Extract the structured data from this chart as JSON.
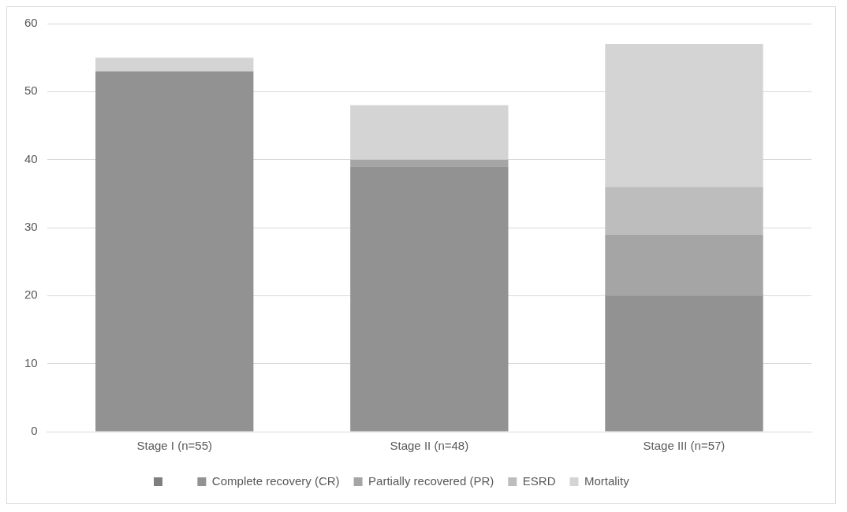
{
  "chart_data": {
    "type": "bar",
    "stacked": true,
    "categories": [
      "Stage I (n=55)",
      "Stage II (n=48)",
      "Stage III (n=57)"
    ],
    "series": [
      {
        "name": "Complete recovery (CR)",
        "color": "#929292",
        "values": [
          53,
          39,
          20
        ]
      },
      {
        "name": "Partially recovered (PR)",
        "color": "#a5a5a5",
        "values": [
          0,
          1,
          9
        ]
      },
      {
        "name": "ESRD",
        "color": "#bdbdbd",
        "values": [
          0,
          0,
          7
        ]
      },
      {
        "name": "Mortality",
        "color": "#d4d4d4",
        "values": [
          2,
          8,
          21
        ]
      }
    ],
    "ylim": [
      0,
      60
    ],
    "yticks": [
      0,
      10,
      20,
      30,
      40,
      50,
      60
    ],
    "grid": "y",
    "legend": "bottom"
  }
}
